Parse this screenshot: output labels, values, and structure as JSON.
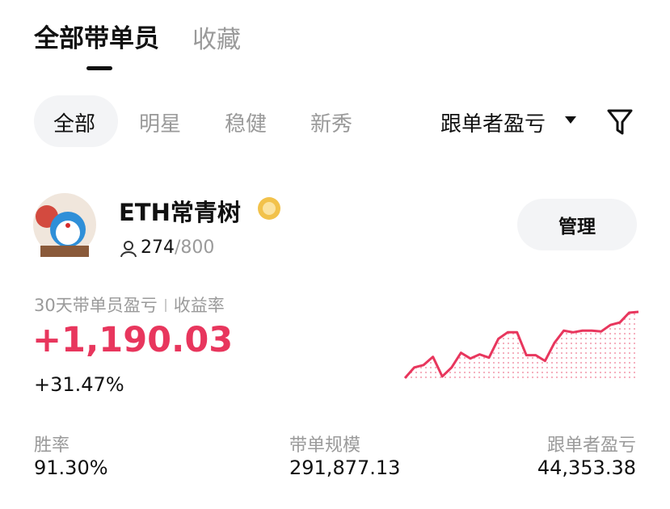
{
  "tabs": [
    "全部带单员",
    "收藏"
  ],
  "filters": [
    "全部",
    "明星",
    "稳健",
    "新秀"
  ],
  "sort": "跟单者盈亏",
  "trader": {
    "name": "ETH常青树",
    "followers": "274",
    "limit": "/800",
    "button": "管理"
  },
  "metric": {
    "label": "30天带单员盈亏",
    "label2": "收益率",
    "pnl": "+1,190.03",
    "roi": "+31.47%"
  },
  "sparkline": {
    "type": "line",
    "color": "#e8365d",
    "values": [
      2,
      15,
      18,
      28,
      4,
      15,
      33,
      26,
      31,
      27,
      50,
      58,
      58,
      30,
      30,
      23,
      45,
      60,
      58,
      60,
      60,
      59,
      67,
      70,
      82,
      83
    ]
  },
  "stats": [
    {
      "label": "胜率",
      "value": "91.30%"
    },
    {
      "label": "带单规模",
      "value": "291,877.13"
    },
    {
      "label": "跟单者盈亏",
      "value": "44,353.38"
    }
  ]
}
